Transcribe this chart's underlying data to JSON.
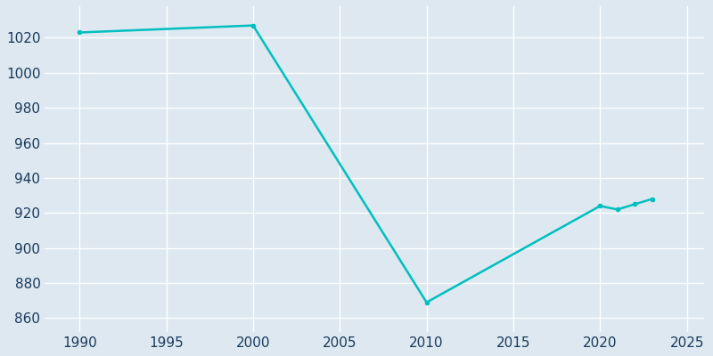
{
  "years": [
    1990,
    2000,
    2010,
    2020,
    2021,
    2022,
    2023
  ],
  "population": [
    1023,
    1027,
    869,
    924,
    922,
    925,
    928
  ],
  "line_color": "#00BFBF",
  "marker": "o",
  "marker_size": 3,
  "line_width": 1.8,
  "xlim": [
    1988,
    2026
  ],
  "ylim": [
    852,
    1038
  ],
  "xticks": [
    1990,
    1995,
    2000,
    2005,
    2010,
    2015,
    2020,
    2025
  ],
  "yticks": [
    860,
    880,
    900,
    920,
    940,
    960,
    980,
    1000,
    1020
  ],
  "background_color": "#dde8f0",
  "grid_color": "#ffffff",
  "tick_label_color": "#1a3a5c",
  "tick_fontsize": 11
}
